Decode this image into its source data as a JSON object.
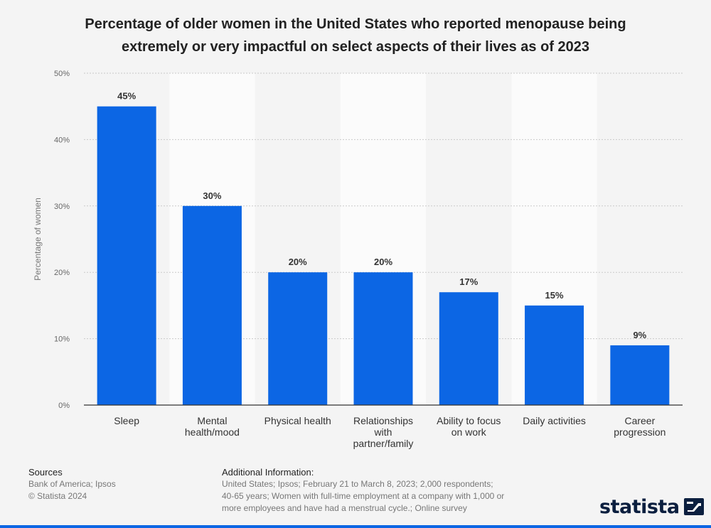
{
  "header": {
    "title_line1": "Percentage of older women in the United States who reported menopause being",
    "title_line2": "extremely or very impactful on select aspects of their lives as of 2023"
  },
  "chart_data": {
    "type": "bar",
    "categories": [
      "Sleep",
      "Mental health/mood",
      "Physical health",
      "Relationships with partner/family",
      "Ability to focus on work",
      "Daily activities",
      "Career progression"
    ],
    "category_lines": [
      [
        "Sleep"
      ],
      [
        "Mental",
        "health/mood"
      ],
      [
        "Physical health"
      ],
      [
        "Relationships",
        "with",
        "partner/family"
      ],
      [
        "Ability to focus",
        "on work"
      ],
      [
        "Daily activities"
      ],
      [
        "Career",
        "progression"
      ]
    ],
    "values": [
      45,
      30,
      20,
      20,
      17,
      15,
      9
    ],
    "value_labels": [
      "45%",
      "30%",
      "20%",
      "20%",
      "17%",
      "15%",
      "9%"
    ],
    "ylabel": "Percentage of women",
    "ylim": [
      0,
      50
    ],
    "yticks": [
      0,
      10,
      20,
      30,
      40,
      50
    ],
    "ytick_labels": [
      "0%",
      "10%",
      "20%",
      "30%",
      "40%",
      "50%"
    ],
    "grid": true,
    "bar_color": "#0c66e4"
  },
  "footer": {
    "sources_title": "Sources",
    "sources_line1": "Bank of America; Ipsos",
    "sources_line2": "© Statista 2024",
    "info_title": "Additional Information:",
    "info_line1": "United States; Ipsos; February 21 to March 8, 2023; 2,000 respondents;",
    "info_line2": "40-65 years; Women with full-time employment at a company with 1,000 or",
    "info_line3": "more employees and have had a menstrual cycle.; Online survey",
    "brand": "statista"
  }
}
